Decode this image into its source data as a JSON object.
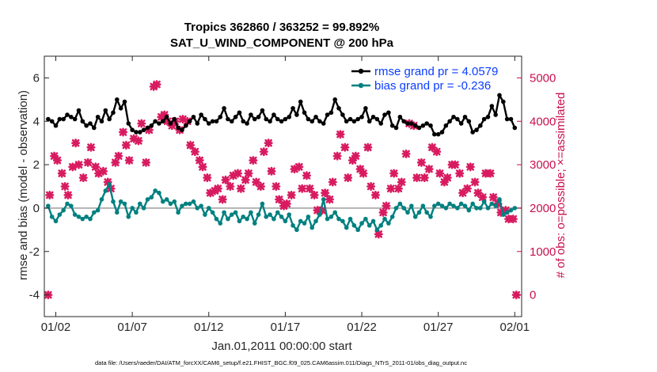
{
  "chart_data": {
    "type": "line",
    "title": "Tropics 362860 / 363252 = 99.892%",
    "subtitle": "SAT_U_WIND_COMPONENT @ 200 hPa",
    "ylabel_left": "rmse and bias (model - observation)",
    "ylabel_right": "# of obs: o=possible; ×=assimilated",
    "xlabel": "Jan.01,2011 00:00:00 start",
    "footer": "data file: /Users/raeder/DAI/ATM_forcXX/CAM6_setup/f.e21.FHIST_BGC.f09_025.CAM6assim.011/Diags_NTrS_2011-01/obs_diag_output.nc",
    "ylim_left": [
      -5,
      7
    ],
    "ylim_right": [
      -500,
      5500
    ],
    "xlim": [
      0.75,
      31.95
    ],
    "x_ticks": [
      {
        "x": 1.5,
        "label": "01/02"
      },
      {
        "x": 6.5,
        "label": "01/07"
      },
      {
        "x": 11.5,
        "label": "01/12"
      },
      {
        "x": 16.5,
        "label": "01/17"
      },
      {
        "x": 21.5,
        "label": "01/22"
      },
      {
        "x": 26.5,
        "label": "01/27"
      },
      {
        "x": 31.5,
        "label": "02/01"
      }
    ],
    "y_ticks_left": [
      -4,
      -2,
      0,
      2,
      4,
      6
    ],
    "y_ticks_right": [
      0,
      1000,
      2000,
      3000,
      4000,
      5000
    ],
    "zero_line": 0,
    "legend": [
      {
        "label": "rmse grand pr = 4.0579",
        "color": "#000000"
      },
      {
        "label": "bias grand pr = -0.236",
        "color": "#008080"
      }
    ],
    "x_start": 1.0,
    "x_step": 0.25,
    "series": [
      {
        "name": "rmse",
        "color": "#000000",
        "values": [
          4.1,
          4.0,
          3.8,
          4.1,
          4.1,
          4.3,
          4.2,
          4.1,
          4.5,
          4.0,
          3.8,
          3.9,
          3.7,
          4.2,
          4.0,
          4.5,
          4.1,
          4.4,
          5.0,
          4.6,
          4.9,
          3.9,
          3.6,
          3.5,
          3.5,
          3.6,
          3.7,
          3.8,
          4.0,
          3.9,
          4.0,
          4.2,
          3.9,
          4.1,
          3.7,
          3.6,
          3.8,
          4.0,
          4.2,
          3.9,
          4.3,
          4.1,
          3.9,
          4.0,
          4.0,
          4.2,
          4.6,
          4.1,
          4.0,
          4.2,
          4.4,
          4.0,
          3.9,
          4.3,
          4.1,
          4.2,
          4.5,
          4.1,
          4.0,
          4.3,
          4.1,
          4.0,
          4.1,
          4.2,
          4.6,
          4.3,
          4.9,
          4.4,
          4.1,
          4.0,
          4.2,
          4.0,
          3.9,
          4.3,
          4.4,
          5.0,
          4.6,
          4.3,
          4.0,
          4.1,
          4.0,
          4.1,
          4.2,
          4.6,
          4.0,
          4.2,
          4.1,
          3.9,
          4.3,
          4.4,
          3.8,
          3.7,
          4.2,
          4.0,
          3.9,
          3.9,
          3.8,
          3.7,
          3.8,
          3.9,
          3.8,
          3.4,
          3.4,
          3.5,
          3.8,
          4.0,
          4.2,
          4.1,
          3.9,
          4.2,
          4.0,
          3.5,
          3.6,
          3.8,
          4.1,
          4.2,
          4.7,
          4.3,
          5.2,
          4.9,
          4.1,
          4.1,
          3.7
        ]
      },
      {
        "name": "bias",
        "color": "#008080",
        "values": [
          0.1,
          -0.4,
          -0.6,
          -0.3,
          -0.1,
          0.2,
          0.1,
          -0.3,
          -0.4,
          -0.5,
          -0.4,
          -0.5,
          -0.2,
          -0.1,
          0.4,
          0.8,
          1.1,
          0.3,
          -0.2,
          0.3,
          0.2,
          -0.4,
          0.0,
          -0.2,
          0.2,
          0.0,
          0.4,
          0.5,
          0.8,
          0.7,
          0.3,
          0.4,
          0.2,
          0.3,
          -0.2,
          0.1,
          0.2,
          0.2,
          0.3,
          0.0,
          0.1,
          -0.3,
          0.0,
          -0.2,
          -0.5,
          -0.7,
          -0.2,
          -0.5,
          -0.3,
          -0.2,
          -0.6,
          -0.4,
          -0.5,
          -0.2,
          -0.7,
          -0.3,
          0.2,
          -0.4,
          -0.3,
          -0.5,
          -0.2,
          -0.4,
          -0.6,
          -0.3,
          -0.8,
          -1.0,
          -0.6,
          -0.7,
          -0.4,
          -0.9,
          -0.6,
          -0.3,
          0.4,
          -0.5,
          -0.4,
          -0.2,
          -0.5,
          -0.6,
          -0.9,
          -0.5,
          -0.8,
          -1.0,
          -0.7,
          -0.5,
          -0.8,
          -0.6,
          -1.0,
          -0.8,
          -0.5,
          -0.7,
          -0.4,
          0.0,
          0.2,
          0.0,
          -0.2,
          0.1,
          -0.4,
          -0.2,
          0.1,
          -0.2,
          -0.4,
          0.1,
          0.2,
          0.1,
          0.0,
          0.2,
          0.1,
          0.0,
          0.2,
          0.1,
          -0.1,
          0.2,
          0.0,
          0.0,
          0.3,
          0.0,
          0.2,
          0.1,
          0.4,
          -0.3,
          -0.2,
          -0.1,
          0.0
        ]
      }
    ],
    "obs_assimilated": {
      "color": "#d81b60",
      "points": [
        [
          1.0,
          0
        ],
        [
          1.1,
          2300
        ],
        [
          1.4,
          3200
        ],
        [
          1.6,
          3100
        ],
        [
          1.9,
          2800
        ],
        [
          2.1,
          2500
        ],
        [
          2.3,
          2300
        ],
        [
          2.6,
          2950
        ],
        [
          2.8,
          3500
        ],
        [
          3.0,
          3000
        ],
        [
          3.3,
          2700
        ],
        [
          3.6,
          3050
        ],
        [
          3.8,
          3400
        ],
        [
          4.1,
          2950
        ],
        [
          4.3,
          2800
        ],
        [
          4.6,
          2850
        ],
        [
          4.9,
          2600
        ],
        [
          5.1,
          2450
        ],
        [
          5.4,
          3050
        ],
        [
          5.6,
          3200
        ],
        [
          5.9,
          3750
        ],
        [
          6.1,
          3450
        ],
        [
          6.3,
          3100
        ],
        [
          6.6,
          3600
        ],
        [
          6.9,
          3550
        ],
        [
          7.1,
          3950
        ],
        [
          7.4,
          3050
        ],
        [
          7.6,
          3800
        ],
        [
          7.9,
          4800
        ],
        [
          8.1,
          4850
        ],
        [
          8.4,
          4100
        ],
        [
          8.6,
          4150
        ],
        [
          8.8,
          4000
        ],
        [
          9.1,
          3900
        ],
        [
          9.3,
          4000
        ],
        [
          9.6,
          3800
        ],
        [
          9.8,
          4050
        ],
        [
          10.1,
          4000
        ],
        [
          10.3,
          3450
        ],
        [
          10.6,
          3300
        ],
        [
          10.9,
          3100
        ],
        [
          11.1,
          2950
        ],
        [
          11.4,
          2700
        ],
        [
          11.6,
          2350
        ],
        [
          11.9,
          2400
        ],
        [
          12.1,
          2450
        ],
        [
          12.4,
          2200
        ],
        [
          12.6,
          2650
        ],
        [
          12.9,
          2500
        ],
        [
          13.1,
          2750
        ],
        [
          13.4,
          2800
        ],
        [
          13.6,
          2450
        ],
        [
          13.9,
          2650
        ],
        [
          14.1,
          2800
        ],
        [
          14.4,
          3100
        ],
        [
          14.6,
          2600
        ],
        [
          14.9,
          2500
        ],
        [
          15.1,
          3300
        ],
        [
          15.4,
          3500
        ],
        [
          15.6,
          2850
        ],
        [
          15.9,
          2500
        ],
        [
          16.1,
          2200
        ],
        [
          16.4,
          2050
        ],
        [
          16.6,
          2100
        ],
        [
          16.9,
          2300
        ],
        [
          17.1,
          2900
        ],
        [
          17.4,
          2950
        ],
        [
          17.6,
          2450
        ],
        [
          17.9,
          2750
        ],
        [
          18.1,
          2450
        ],
        [
          18.4,
          2300
        ],
        [
          18.6,
          1950
        ],
        [
          18.9,
          1950
        ],
        [
          19.1,
          2350
        ],
        [
          19.4,
          2200
        ],
        [
          19.6,
          2600
        ],
        [
          19.9,
          3200
        ],
        [
          20.1,
          3700
        ],
        [
          20.4,
          3400
        ],
        [
          20.6,
          2700
        ],
        [
          20.9,
          3100
        ],
        [
          21.1,
          3200
        ],
        [
          21.4,
          2900
        ],
        [
          21.6,
          2800
        ],
        [
          21.9,
          3400
        ],
        [
          22.1,
          2500
        ],
        [
          22.4,
          2300
        ],
        [
          22.6,
          1400
        ],
        [
          22.9,
          1900
        ],
        [
          23.1,
          2050
        ],
        [
          23.4,
          2450
        ],
        [
          23.6,
          2800
        ],
        [
          23.9,
          2450
        ],
        [
          24.1,
          2600
        ],
        [
          24.4,
          3250
        ],
        [
          24.6,
          3950
        ],
        [
          24.9,
          3900
        ],
        [
          25.1,
          2700
        ],
        [
          25.4,
          3050
        ],
        [
          25.6,
          2700
        ],
        [
          25.9,
          2900
        ],
        [
          26.1,
          3400
        ],
        [
          26.4,
          3300
        ],
        [
          26.6,
          2800
        ],
        [
          26.9,
          2600
        ],
        [
          27.1,
          2700
        ],
        [
          27.4,
          3000
        ],
        [
          27.6,
          3000
        ],
        [
          27.9,
          2800
        ],
        [
          28.1,
          2350
        ],
        [
          28.4,
          2450
        ],
        [
          28.6,
          2950
        ],
        [
          28.9,
          2600
        ],
        [
          29.1,
          2350
        ],
        [
          29.4,
          2250
        ],
        [
          29.6,
          2800
        ],
        [
          29.9,
          2800
        ],
        [
          30.1,
          2250
        ],
        [
          30.4,
          2100
        ],
        [
          30.6,
          1900
        ],
        [
          30.9,
          1950
        ],
        [
          31.1,
          1750
        ],
        [
          31.4,
          1750
        ],
        [
          31.6,
          0
        ]
      ]
    }
  }
}
